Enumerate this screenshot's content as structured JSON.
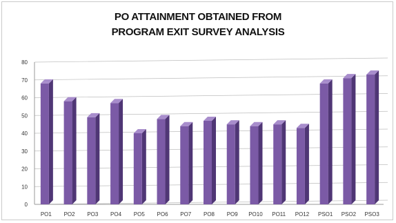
{
  "chart_data": {
    "type": "bar",
    "title_lines": [
      "PO ATTAINMENT OBTAINED FROM",
      "PROGRAM EXIT SURVEY ANALYSIS"
    ],
    "categories": [
      "PO1",
      "PO2",
      "PO3",
      "PO4",
      "PO5",
      "PO6",
      "PO7",
      "PO8",
      "PO9",
      "PO10",
      "PO11",
      "PO12",
      "PSO1",
      "PSO2",
      "PSO3"
    ],
    "values": [
      68,
      58,
      49,
      57,
      40,
      48,
      44,
      47,
      45,
      44,
      45,
      43,
      68,
      71,
      73
    ],
    "ylim": [
      0,
      80
    ],
    "yticks": [
      0,
      10,
      20,
      30,
      40,
      50,
      60,
      70,
      80
    ],
    "grid": true,
    "legend": "none",
    "colors": {
      "bar_front": "#7b5aa6",
      "bar_side": "#4f3675",
      "bar_top": "#a88dcc",
      "grid": "#bdbdbd"
    }
  }
}
